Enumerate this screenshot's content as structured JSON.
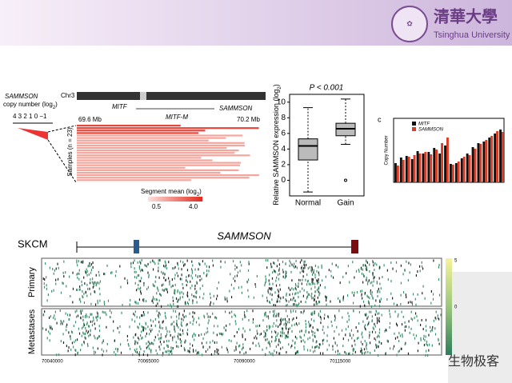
{
  "header": {
    "university_cn": "清華大學",
    "university_en": "Tsinghua University"
  },
  "panel_a": {
    "gene": "SAMMSON",
    "copy_number": "copy number (log",
    "sub": "2",
    "close": ")",
    "cn_ticks": "4 3 2 1 0 −1",
    "chromosome": "Chr3",
    "mitf": "MITF",
    "sammson": "SAMMSON",
    "mitf_m": "MITF-M",
    "start": "69.6 Mb",
    "end": "70.2 Mb",
    "samples": "Samples (n = 23)",
    "segment": "Segment mean (log",
    "seg_sub": "2",
    "seg_close": ")",
    "seg_low": "0.5",
    "seg_high": "4.0"
  },
  "box_plot": {
    "type": "box",
    "title": "P < 0.001",
    "ylabel": "Relative SAMMSON expression (log",
    "ylabel_sub": "2",
    "ylabel_close": ")",
    "categories": [
      "Normal",
      "Gain"
    ],
    "ylim": [
      -2,
      11
    ],
    "yticks": [
      0,
      2,
      4,
      6,
      8,
      10
    ],
    "boxes": [
      {
        "low": -1.5,
        "q1": 2.6,
        "median": 4.4,
        "q3": 5.3,
        "high": 9.3,
        "outliers": []
      },
      {
        "low": 4.6,
        "q1": 5.7,
        "median": 6.6,
        "q3": 7.3,
        "high": 10.4,
        "outliers": [
          0
        ]
      }
    ]
  },
  "bar_chart": {
    "type": "bar",
    "panel": "c",
    "ylabel": "Copy Number",
    "categories": [
      null,
      null,
      null,
      null,
      null,
      null,
      null,
      null,
      null,
      null,
      null,
      null,
      null,
      null,
      null,
      null,
      null,
      null,
      null,
      null
    ],
    "ylim": [
      0,
      8
    ],
    "series": [
      {
        "name": "MITF",
        "color": "#111111",
        "values": [
          2.4,
          3.1,
          3.3,
          2.9,
          3.9,
          3.6,
          3.8,
          4.3,
          3.6,
          4.6,
          2.3,
          2.4,
          3.0,
          3.6,
          4.4,
          4.9,
          5.1,
          5.6,
          6.1,
          6.6
        ]
      },
      {
        "name": "SAMMSON",
        "color": "#e03a22",
        "values": [
          2.1,
          2.8,
          3.2,
          3.4,
          3.6,
          3.8,
          3.5,
          4.1,
          4.9,
          5.6,
          2.2,
          2.6,
          3.2,
          3.4,
          4.2,
          4.8,
          5.3,
          5.8,
          6.4,
          6.3
        ]
      }
    ]
  },
  "panel_b": {
    "cohort": "SKCM",
    "gene": "SAMMSON",
    "primary": "Primary",
    "metastases": "Metastases",
    "xticks": [
      "70040000",
      "70065000",
      "70090000",
      "70115000"
    ],
    "scale_max": "5",
    "scale_mid": "0"
  },
  "watermark": "生物极客"
}
